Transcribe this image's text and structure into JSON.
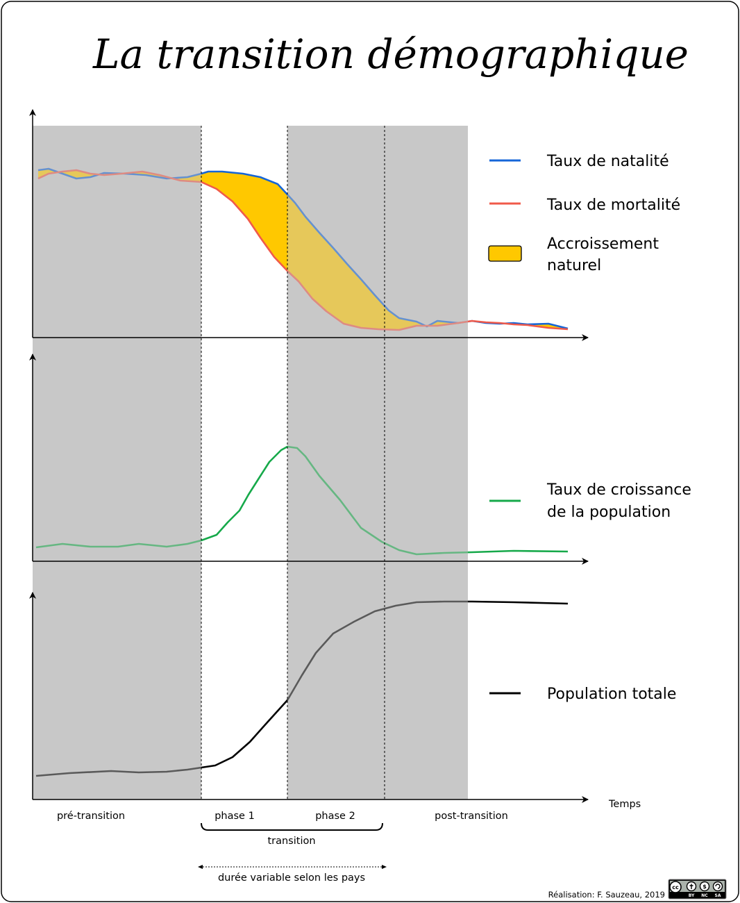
{
  "title": "La transition démographique",
  "legend": {
    "natalite": "Taux de natalité",
    "mortalite": "Taux de mortalité",
    "accroissement_line1": "Accroissement",
    "accroissement_line2": "naturel",
    "croissance_line1": "Taux de croissance",
    "croissance_line2": "de la population",
    "population": "Population totale"
  },
  "axis": {
    "x_label": "Temps"
  },
  "phases": {
    "pre": "pré-transition",
    "phase1": "phase 1",
    "phase2": "phase 2",
    "post": "post-transition",
    "transition": "transition",
    "duree": "durée variable selon les pays"
  },
  "credit": "Réalisation: F. Sauzeau, 2019",
  "license": {
    "by": "BY",
    "nc": "NC",
    "sa": "SA",
    "cc": "cc"
  },
  "colors": {
    "natalite": "#1565d8",
    "mortalite": "#f05a4a",
    "accroissement": "#ffc800",
    "croissance": "#16a94a",
    "population": "#000000",
    "shade": "#c8c8c8"
  }
}
